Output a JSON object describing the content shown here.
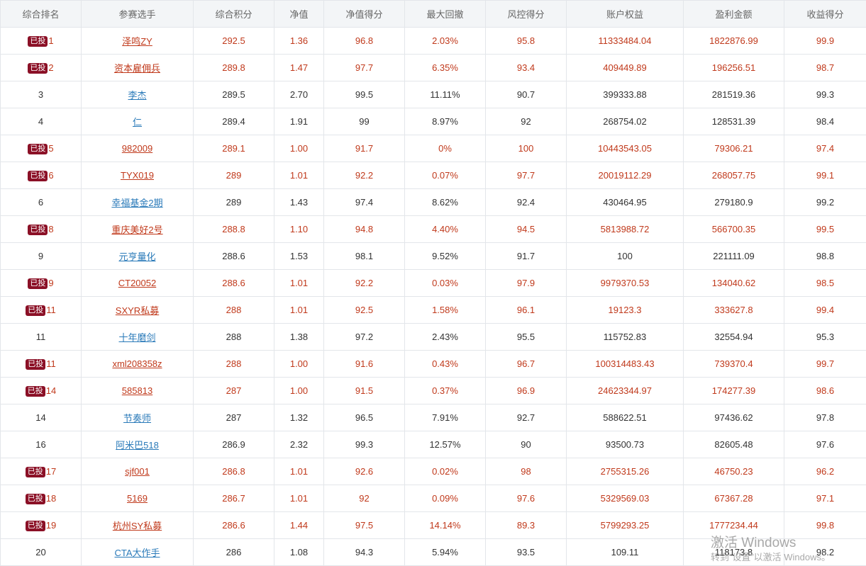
{
  "table": {
    "headers": [
      "综合排名",
      "参赛选手",
      "综合积分",
      "净值",
      "净值得分",
      "最大回撤",
      "风控得分",
      "账户权益",
      "盈利金额",
      "收益得分"
    ],
    "rows": [
      {
        "highlighted": true,
        "badge": "已投",
        "rank": "1",
        "player": "泽鸣ZY",
        "score": "292.5",
        "nav": "1.36",
        "nav_score": "96.8",
        "max_drawdown": "2.03%",
        "risk_score": "95.8",
        "equity": "11333484.04",
        "profit": "1822876.99",
        "return_score": "99.9"
      },
      {
        "highlighted": true,
        "badge": "已投",
        "rank": "2",
        "player": "资本雇佣兵",
        "score": "289.8",
        "nav": "1.47",
        "nav_score": "97.7",
        "max_drawdown": "6.35%",
        "risk_score": "93.4",
        "equity": "409449.89",
        "profit": "196256.51",
        "return_score": "98.7"
      },
      {
        "highlighted": false,
        "badge": "",
        "rank": "3",
        "player": "李杰",
        "score": "289.5",
        "nav": "2.70",
        "nav_score": "99.5",
        "max_drawdown": "11.11%",
        "risk_score": "90.7",
        "equity": "399333.88",
        "profit": "281519.36",
        "return_score": "99.3"
      },
      {
        "highlighted": false,
        "badge": "",
        "rank": "4",
        "player": "仁",
        "score": "289.4",
        "nav": "1.91",
        "nav_score": "99",
        "max_drawdown": "8.97%",
        "risk_score": "92",
        "equity": "268754.02",
        "profit": "128531.39",
        "return_score": "98.4"
      },
      {
        "highlighted": true,
        "badge": "已投",
        "rank": "5",
        "player": "982009",
        "score": "289.1",
        "nav": "1.00",
        "nav_score": "91.7",
        "max_drawdown": "0%",
        "risk_score": "100",
        "equity": "10443543.05",
        "profit": "79306.21",
        "return_score": "97.4"
      },
      {
        "highlighted": true,
        "badge": "已投",
        "rank": "6",
        "player": "TYX019",
        "score": "289",
        "nav": "1.01",
        "nav_score": "92.2",
        "max_drawdown": "0.07%",
        "risk_score": "97.7",
        "equity": "20019112.29",
        "profit": "268057.75",
        "return_score": "99.1"
      },
      {
        "highlighted": false,
        "badge": "",
        "rank": "6",
        "player": "幸福基金2期",
        "score": "289",
        "nav": "1.43",
        "nav_score": "97.4",
        "max_drawdown": "8.62%",
        "risk_score": "92.4",
        "equity": "430464.95",
        "profit": "279180.9",
        "return_score": "99.2"
      },
      {
        "highlighted": true,
        "badge": "已投",
        "rank": "8",
        "player": "重庆美好2号",
        "score": "288.8",
        "nav": "1.10",
        "nav_score": "94.8",
        "max_drawdown": "4.40%",
        "risk_score": "94.5",
        "equity": "5813988.72",
        "profit": "566700.35",
        "return_score": "99.5"
      },
      {
        "highlighted": false,
        "badge": "",
        "rank": "9",
        "player": "元亨量化",
        "score": "288.6",
        "nav": "1.53",
        "nav_score": "98.1",
        "max_drawdown": "9.52%",
        "risk_score": "91.7",
        "equity": "100",
        "profit": "221111.09",
        "return_score": "98.8"
      },
      {
        "highlighted": true,
        "badge": "已投",
        "rank": "9",
        "player": "CT20052",
        "score": "288.6",
        "nav": "1.01",
        "nav_score": "92.2",
        "max_drawdown": "0.03%",
        "risk_score": "97.9",
        "equity": "9979370.53",
        "profit": "134040.62",
        "return_score": "98.5"
      },
      {
        "highlighted": true,
        "badge": "已投",
        "rank": "11",
        "player": "SXYR私募",
        "score": "288",
        "nav": "1.01",
        "nav_score": "92.5",
        "max_drawdown": "1.58%",
        "risk_score": "96.1",
        "equity": "19123.3",
        "profit": "333627.8",
        "return_score": "99.4"
      },
      {
        "highlighted": false,
        "badge": "",
        "rank": "11",
        "player": "十年磨剑",
        "score": "288",
        "nav": "1.38",
        "nav_score": "97.2",
        "max_drawdown": "2.43%",
        "risk_score": "95.5",
        "equity": "115752.83",
        "profit": "32554.94",
        "return_score": "95.3"
      },
      {
        "highlighted": true,
        "badge": "已投",
        "rank": "11",
        "player": "xml208358z",
        "score": "288",
        "nav": "1.00",
        "nav_score": "91.6",
        "max_drawdown": "0.43%",
        "risk_score": "96.7",
        "equity": "100314483.43",
        "profit": "739370.4",
        "return_score": "99.7"
      },
      {
        "highlighted": true,
        "badge": "已投",
        "rank": "14",
        "player": "585813",
        "score": "287",
        "nav": "1.00",
        "nav_score": "91.5",
        "max_drawdown": "0.37%",
        "risk_score": "96.9",
        "equity": "24623344.97",
        "profit": "174277.39",
        "return_score": "98.6"
      },
      {
        "highlighted": false,
        "badge": "",
        "rank": "14",
        "player": "节奏师",
        "score": "287",
        "nav": "1.32",
        "nav_score": "96.5",
        "max_drawdown": "7.91%",
        "risk_score": "92.7",
        "equity": "588622.51",
        "profit": "97436.62",
        "return_score": "97.8"
      },
      {
        "highlighted": false,
        "badge": "",
        "rank": "16",
        "player": "阿米巴518",
        "score": "286.9",
        "nav": "2.32",
        "nav_score": "99.3",
        "max_drawdown": "12.57%",
        "risk_score": "90",
        "equity": "93500.73",
        "profit": "82605.48",
        "return_score": "97.6"
      },
      {
        "highlighted": true,
        "badge": "已投",
        "rank": "17",
        "player": "sjf001",
        "score": "286.8",
        "nav": "1.01",
        "nav_score": "92.6",
        "max_drawdown": "0.02%",
        "risk_score": "98",
        "equity": "2755315.26",
        "profit": "46750.23",
        "return_score": "96.2"
      },
      {
        "highlighted": true,
        "badge": "已投",
        "rank": "18",
        "player": "5169",
        "score": "286.7",
        "nav": "1.01",
        "nav_score": "92",
        "max_drawdown": "0.09%",
        "risk_score": "97.6",
        "equity": "5329569.03",
        "profit": "67367.28",
        "return_score": "97.1"
      },
      {
        "highlighted": true,
        "badge": "已投",
        "rank": "19",
        "player": "杭州SY私募",
        "score": "286.6",
        "nav": "1.44",
        "nav_score": "97.5",
        "max_drawdown": "14.14%",
        "risk_score": "89.3",
        "equity": "5799293.25",
        "profit": "1777234.44",
        "return_score": "99.8"
      },
      {
        "highlighted": false,
        "badge": "",
        "rank": "20",
        "player": "CTA大作手",
        "score": "286",
        "nav": "1.08",
        "nav_score": "94.3",
        "max_drawdown": "5.94%",
        "risk_score": "93.5",
        "equity": "109.11",
        "profit": "118173.8",
        "return_score": "98.2"
      }
    ]
  },
  "watermark": {
    "title": "激活 Windows",
    "subtitle": "转到“设置”以激活 Windows。"
  },
  "colors": {
    "highlight_text": "#c0391b",
    "link_blue": "#2a7ab9",
    "badge_bg": "#8b1026",
    "header_bg": "#f3f5f7",
    "border": "#e3e6ea"
  }
}
